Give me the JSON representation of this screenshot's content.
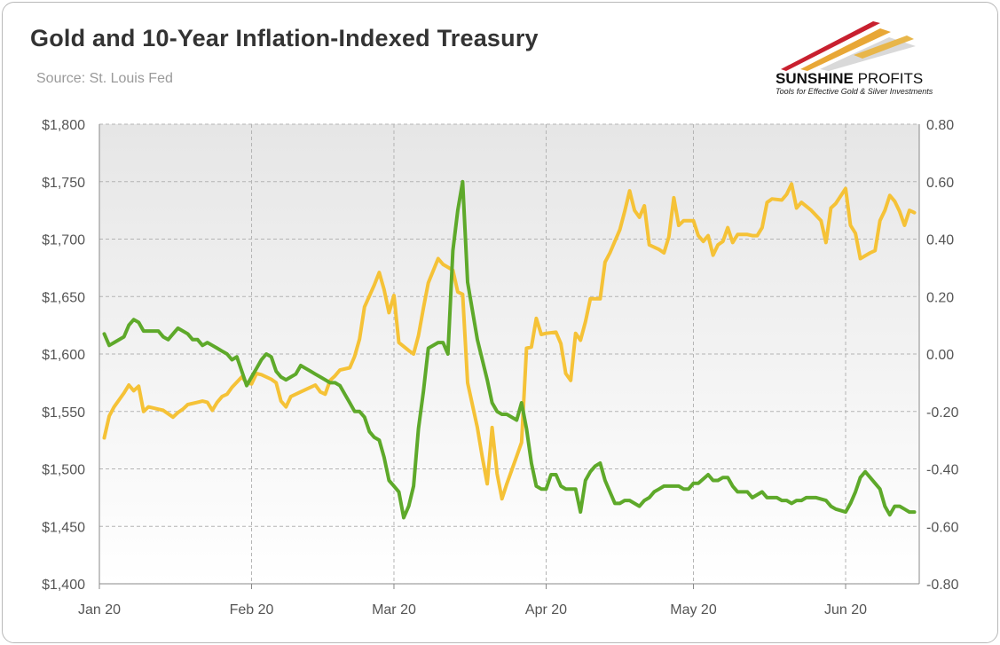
{
  "header": {
    "title": "Gold and 10-Year Inflation-Indexed Treasury",
    "source": "Source: St. Louis Fed"
  },
  "logo": {
    "brand_bold": "SUNSHINE",
    "brand_thin": " PROFITS",
    "tagline": "Tools for Effective Gold & Silver Investments",
    "colors": [
      "#c8202f",
      "#e8a736",
      "#d8d8d8"
    ]
  },
  "chart_data": {
    "type": "line",
    "x_ticks": [
      {
        "label": "Jan 20",
        "x": 0
      },
      {
        "label": "Feb 20",
        "x": 31
      },
      {
        "label": "Mar 20",
        "x": 60
      },
      {
        "label": "Apr 20",
        "x": 91
      },
      {
        "label": "May 20",
        "x": 121
      },
      {
        "label": "Jun 20",
        "x": 152
      }
    ],
    "xlim": [
      0,
      167
    ],
    "y_left": {
      "lim": [
        1400,
        1800
      ],
      "ticks": [
        "$1,400",
        "$1,450",
        "$1,500",
        "$1,550",
        "$1,600",
        "$1,650",
        "$1,700",
        "$1,750",
        "$1,800"
      ],
      "tick_values": [
        1400,
        1450,
        1500,
        1550,
        1600,
        1650,
        1700,
        1750,
        1800
      ]
    },
    "y_right": {
      "lim": [
        -0.8,
        0.8
      ],
      "ticks": [
        "-0.80",
        "-0.60",
        "-0.40",
        "-0.20",
        "0.00",
        "0.20",
        "0.40",
        "0.60",
        "0.80"
      ],
      "tick_values": [
        -0.8,
        -0.6,
        -0.4,
        -0.2,
        0.0,
        0.2,
        0.4,
        0.6,
        0.8
      ]
    },
    "grid": true,
    "series": [
      {
        "axis": "left",
        "color": "#f5c237",
        "points": [
          [
            1,
            1527
          ],
          [
            2,
            1546
          ],
          [
            3,
            1554
          ],
          [
            5,
            1566
          ],
          [
            6,
            1573
          ],
          [
            7,
            1568
          ],
          [
            8,
            1572
          ],
          [
            9,
            1550
          ],
          [
            10,
            1554
          ],
          [
            12,
            1552
          ],
          [
            13,
            1551
          ],
          [
            15,
            1545
          ],
          [
            16,
            1549
          ],
          [
            17,
            1552
          ],
          [
            18,
            1556
          ],
          [
            20,
            1558
          ],
          [
            21,
            1559
          ],
          [
            22,
            1558
          ],
          [
            23,
            1551
          ],
          [
            24,
            1558
          ],
          [
            25,
            1563
          ],
          [
            26,
            1565
          ],
          [
            27,
            1571
          ],
          [
            29,
            1580
          ],
          [
            30,
            1575
          ],
          [
            31,
            1574
          ],
          [
            32,
            1583
          ],
          [
            33,
            1582
          ],
          [
            35,
            1578
          ],
          [
            36,
            1575
          ],
          [
            37,
            1559
          ],
          [
            38,
            1554
          ],
          [
            39,
            1563
          ],
          [
            41,
            1567
          ],
          [
            43,
            1571
          ],
          [
            44,
            1573
          ],
          [
            45,
            1567
          ],
          [
            46,
            1565
          ],
          [
            47,
            1577
          ],
          [
            48,
            1581
          ],
          [
            49,
            1586
          ],
          [
            51,
            1588
          ],
          [
            52,
            1598
          ],
          [
            53,
            1613
          ],
          [
            54,
            1641
          ],
          [
            56,
            1660
          ],
          [
            57,
            1671
          ],
          [
            58,
            1656
          ],
          [
            59,
            1636
          ],
          [
            60,
            1651
          ],
          [
            61,
            1610
          ],
          [
            63,
            1603
          ],
          [
            64,
            1600
          ],
          [
            65,
            1616
          ],
          [
            66,
            1640
          ],
          [
            67,
            1662
          ],
          [
            69,
            1683
          ],
          [
            70,
            1678
          ],
          [
            72,
            1673
          ],
          [
            73,
            1654
          ],
          [
            74,
            1652
          ],
          [
            75,
            1575
          ],
          [
            77,
            1536
          ],
          [
            78,
            1510
          ],
          [
            79,
            1487
          ],
          [
            80,
            1536
          ],
          [
            81,
            1496
          ],
          [
            82,
            1474
          ],
          [
            83,
            1487
          ],
          [
            85,
            1511
          ],
          [
            86,
            1523
          ],
          [
            87,
            1605
          ],
          [
            88,
            1606
          ],
          [
            89,
            1631
          ],
          [
            90,
            1617
          ],
          [
            91,
            1618
          ],
          [
            93,
            1619
          ],
          [
            94,
            1609
          ],
          [
            95,
            1583
          ],
          [
            96,
            1577
          ],
          [
            97,
            1618
          ],
          [
            98,
            1612
          ],
          [
            99,
            1628
          ],
          [
            100,
            1648
          ],
          [
            101,
            1648
          ],
          [
            102,
            1648
          ],
          [
            103,
            1680
          ],
          [
            104,
            1688
          ],
          [
            106,
            1708
          ],
          [
            107,
            1724
          ],
          [
            108,
            1742
          ],
          [
            109,
            1725
          ],
          [
            110,
            1719
          ],
          [
            111,
            1729
          ],
          [
            112,
            1695
          ],
          [
            114,
            1691
          ],
          [
            115,
            1688
          ],
          [
            116,
            1702
          ],
          [
            117,
            1736
          ],
          [
            118,
            1712
          ],
          [
            119,
            1716
          ],
          [
            121,
            1716
          ],
          [
            122,
            1703
          ],
          [
            123,
            1698
          ],
          [
            124,
            1703
          ],
          [
            125,
            1686
          ],
          [
            126,
            1695
          ],
          [
            127,
            1698
          ],
          [
            128,
            1710
          ],
          [
            129,
            1697
          ],
          [
            130,
            1704
          ],
          [
            132,
            1704
          ],
          [
            133,
            1703
          ],
          [
            134,
            1703
          ],
          [
            135,
            1710
          ],
          [
            136,
            1732
          ],
          [
            137,
            1735
          ],
          [
            139,
            1734
          ],
          [
            140,
            1739
          ],
          [
            141,
            1748
          ],
          [
            142,
            1727
          ],
          [
            143,
            1732
          ],
          [
            145,
            1725
          ],
          [
            147,
            1716
          ],
          [
            148,
            1697
          ],
          [
            149,
            1727
          ],
          [
            150,
            1731
          ],
          [
            152,
            1744
          ],
          [
            153,
            1712
          ],
          [
            154,
            1705
          ],
          [
            155,
            1683
          ],
          [
            157,
            1688
          ],
          [
            158,
            1690
          ],
          [
            159,
            1716
          ],
          [
            160,
            1725
          ],
          [
            161,
            1738
          ],
          [
            162,
            1733
          ],
          [
            163,
            1724
          ],
          [
            164,
            1712
          ],
          [
            165,
            1725
          ],
          [
            166,
            1723
          ]
        ]
      },
      {
        "axis": "right",
        "color": "#5ea92a",
        "points": [
          [
            1,
            0.07
          ],
          [
            2,
            0.03
          ],
          [
            3,
            0.04
          ],
          [
            5,
            0.06
          ],
          [
            6,
            0.1
          ],
          [
            7,
            0.12
          ],
          [
            8,
            0.11
          ],
          [
            9,
            0.08
          ],
          [
            10,
            0.08
          ],
          [
            11,
            0.08
          ],
          [
            12,
            0.08
          ],
          [
            13,
            0.06
          ],
          [
            14,
            0.05
          ],
          [
            15,
            0.07
          ],
          [
            16,
            0.09
          ],
          [
            17,
            0.08
          ],
          [
            18,
            0.07
          ],
          [
            19,
            0.05
          ],
          [
            20,
            0.05
          ],
          [
            21,
            0.03
          ],
          [
            22,
            0.04
          ],
          [
            23,
            0.03
          ],
          [
            24,
            0.02
          ],
          [
            25,
            0.01
          ],
          [
            26,
            0.0
          ],
          [
            27,
            -0.02
          ],
          [
            28,
            -0.01
          ],
          [
            29,
            -0.06
          ],
          [
            30,
            -0.11
          ],
          [
            31,
            -0.08
          ],
          [
            32,
            -0.05
          ],
          [
            33,
            -0.02
          ],
          [
            34,
            0.0
          ],
          [
            35,
            -0.01
          ],
          [
            36,
            -0.06
          ],
          [
            37,
            -0.08
          ],
          [
            38,
            -0.09
          ],
          [
            39,
            -0.08
          ],
          [
            40,
            -0.07
          ],
          [
            41,
            -0.04
          ],
          [
            42,
            -0.05
          ],
          [
            43,
            -0.06
          ],
          [
            44,
            -0.07
          ],
          [
            45,
            -0.08
          ],
          [
            46,
            -0.09
          ],
          [
            47,
            -0.1
          ],
          [
            48,
            -0.1
          ],
          [
            49,
            -0.11
          ],
          [
            50,
            -0.14
          ],
          [
            51,
            -0.17
          ],
          [
            52,
            -0.2
          ],
          [
            53,
            -0.2
          ],
          [
            54,
            -0.22
          ],
          [
            55,
            -0.27
          ],
          [
            56,
            -0.29
          ],
          [
            57,
            -0.3
          ],
          [
            58,
            -0.36
          ],
          [
            59,
            -0.44
          ],
          [
            60,
            -0.46
          ],
          [
            61,
            -0.48
          ],
          [
            62,
            -0.57
          ],
          [
            63,
            -0.53
          ],
          [
            64,
            -0.46
          ],
          [
            65,
            -0.26
          ],
          [
            66,
            -0.13
          ],
          [
            67,
            0.02
          ],
          [
            69,
            0.04
          ],
          [
            70,
            0.04
          ],
          [
            71,
            0.0
          ],
          [
            72,
            0.36
          ],
          [
            73,
            0.5
          ],
          [
            74,
            0.6
          ],
          [
            75,
            0.25
          ],
          [
            76,
            0.15
          ],
          [
            77,
            0.05
          ],
          [
            79,
            -0.09
          ],
          [
            80,
            -0.17
          ],
          [
            81,
            -0.2
          ],
          [
            82,
            -0.21
          ],
          [
            83,
            -0.21
          ],
          [
            85,
            -0.23
          ],
          [
            86,
            -0.17
          ],
          [
            87,
            -0.26
          ],
          [
            88,
            -0.38
          ],
          [
            89,
            -0.46
          ],
          [
            90,
            -0.47
          ],
          [
            91,
            -0.47
          ],
          [
            92,
            -0.42
          ],
          [
            93,
            -0.42
          ],
          [
            94,
            -0.46
          ],
          [
            95,
            -0.47
          ],
          [
            96,
            -0.47
          ],
          [
            97,
            -0.47
          ],
          [
            98,
            -0.55
          ],
          [
            99,
            -0.44
          ],
          [
            100,
            -0.41
          ],
          [
            101,
            -0.39
          ],
          [
            102,
            -0.38
          ],
          [
            103,
            -0.44
          ],
          [
            104,
            -0.48
          ],
          [
            105,
            -0.52
          ],
          [
            106,
            -0.52
          ],
          [
            107,
            -0.51
          ],
          [
            108,
            -0.51
          ],
          [
            109,
            -0.52
          ],
          [
            110,
            -0.53
          ],
          [
            111,
            -0.51
          ],
          [
            112,
            -0.5
          ],
          [
            113,
            -0.48
          ],
          [
            114,
            -0.47
          ],
          [
            115,
            -0.46
          ],
          [
            116,
            -0.46
          ],
          [
            117,
            -0.46
          ],
          [
            118,
            -0.46
          ],
          [
            119,
            -0.47
          ],
          [
            120,
            -0.47
          ],
          [
            121,
            -0.45
          ],
          [
            122,
            -0.45
          ],
          [
            124,
            -0.42
          ],
          [
            125,
            -0.44
          ],
          [
            126,
            -0.44
          ],
          [
            127,
            -0.43
          ],
          [
            128,
            -0.43
          ],
          [
            129,
            -0.46
          ],
          [
            130,
            -0.48
          ],
          [
            131,
            -0.48
          ],
          [
            132,
            -0.48
          ],
          [
            133,
            -0.5
          ],
          [
            134,
            -0.49
          ],
          [
            135,
            -0.48
          ],
          [
            136,
            -0.5
          ],
          [
            137,
            -0.5
          ],
          [
            138,
            -0.5
          ],
          [
            139,
            -0.51
          ],
          [
            140,
            -0.51
          ],
          [
            141,
            -0.52
          ],
          [
            142,
            -0.51
          ],
          [
            143,
            -0.51
          ],
          [
            144,
            -0.5
          ],
          [
            145,
            -0.5
          ],
          [
            146,
            -0.5
          ],
          [
            148,
            -0.51
          ],
          [
            149,
            -0.53
          ],
          [
            150,
            -0.54
          ],
          [
            152,
            -0.55
          ],
          [
            153,
            -0.52
          ],
          [
            154,
            -0.48
          ],
          [
            155,
            -0.43
          ],
          [
            156,
            -0.41
          ],
          [
            157,
            -0.43
          ],
          [
            158,
            -0.45
          ],
          [
            159,
            -0.47
          ],
          [
            160,
            -0.53
          ],
          [
            161,
            -0.56
          ],
          [
            162,
            -0.53
          ],
          [
            163,
            -0.53
          ],
          [
            164,
            -0.54
          ],
          [
            165,
            -0.55
          ],
          [
            166,
            -0.55
          ]
        ]
      }
    ]
  }
}
